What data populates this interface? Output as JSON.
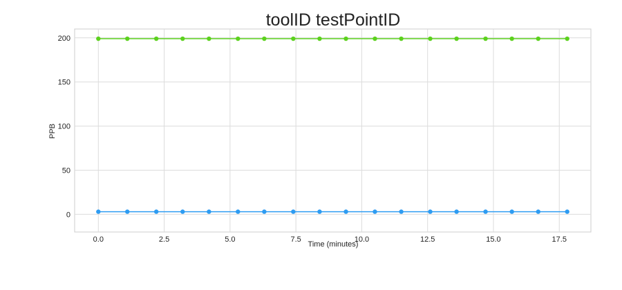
{
  "chart_data": {
    "type": "line",
    "title": "toolID testPointID",
    "xlabel": "Time (minutes)",
    "ylabel": "PPB",
    "xlim": [
      -0.9,
      18.7
    ],
    "ylim": [
      -20,
      210
    ],
    "x_ticks": [
      0.0,
      2.5,
      5.0,
      7.5,
      10.0,
      12.5,
      15.0,
      17.5
    ],
    "x_tick_labels": [
      "0.0",
      "2.5",
      "5.0",
      "7.5",
      "10.0",
      "12.5",
      "15.0",
      "17.5"
    ],
    "y_ticks": [
      0,
      50,
      100,
      150,
      200
    ],
    "y_tick_labels": [
      "0",
      "50",
      "100",
      "150",
      "200"
    ],
    "grid": true,
    "x": [
      0.0,
      1.1,
      2.2,
      3.2,
      4.2,
      5.3,
      6.3,
      7.4,
      8.4,
      9.4,
      10.5,
      11.5,
      12.6,
      13.6,
      14.7,
      15.7,
      16.7,
      17.8
    ],
    "series": [
      {
        "color": "#5cd11e",
        "values": [
          199,
          199,
          199,
          199,
          199,
          199,
          199,
          199,
          199,
          199,
          199,
          199,
          199,
          199,
          199,
          199,
          199,
          199
        ]
      },
      {
        "color": "#2e9cf2",
        "values": [
          3,
          3,
          3,
          3,
          3,
          3,
          3,
          3,
          3,
          3,
          3,
          3,
          3,
          3,
          3,
          3,
          3,
          3
        ]
      }
    ]
  }
}
